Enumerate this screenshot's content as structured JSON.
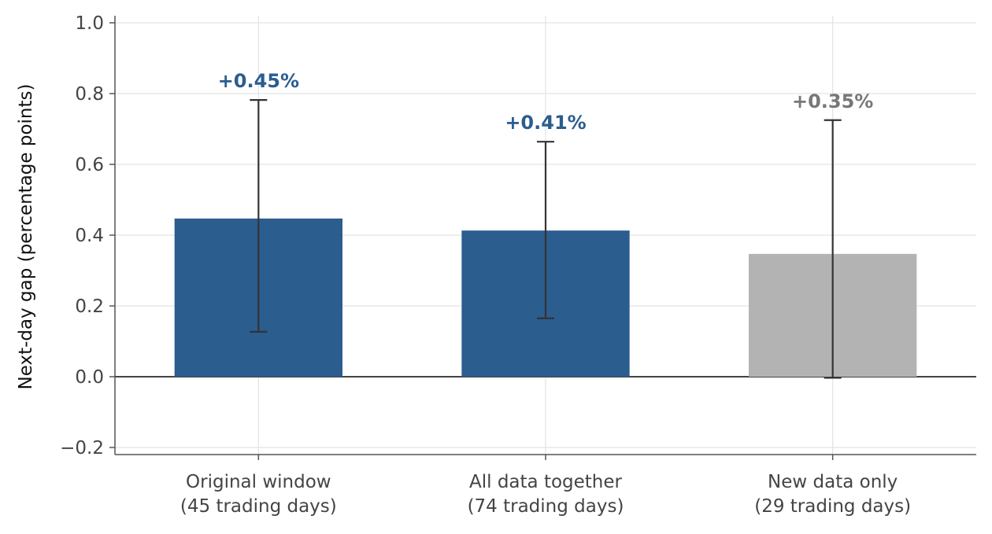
{
  "chart_data": {
    "type": "bar",
    "title": "",
    "xlabel": "",
    "ylabel": "Next-day gap (percentage points)",
    "categories": [
      [
        "Original window",
        "(45 trading days)"
      ],
      [
        "All data together",
        "(74 trading days)"
      ],
      [
        "New data only",
        "(29 trading days)"
      ]
    ],
    "values": [
      0.447,
      0.413,
      0.347
    ],
    "error_low": [
      0.127,
      0.165,
      -0.003
    ],
    "error_high": [
      0.782,
      0.664,
      0.725
    ],
    "data_labels": [
      "+0.45%",
      "+0.41%",
      "+0.35%"
    ],
    "bar_colors": [
      "#2b5d8f",
      "#2b5d8f",
      "#b3b3b3"
    ],
    "label_colors": [
      "#2b5d8f",
      "#2b5d8f",
      "#777777"
    ],
    "ylim": [
      -0.22,
      1.02
    ],
    "yticks": [
      -0.2,
      0.0,
      0.2,
      0.4,
      0.6,
      0.8,
      1.0
    ],
    "ytick_labels": [
      "−0.2",
      "0.0",
      "0.2",
      "0.4",
      "0.6",
      "0.8",
      "1.0"
    ],
    "grid": true,
    "legend": "none"
  }
}
